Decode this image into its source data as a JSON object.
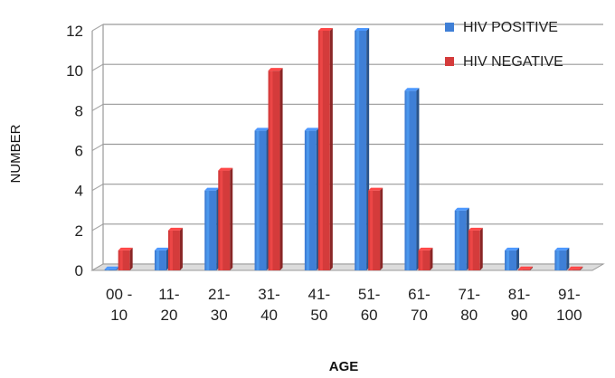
{
  "chart_data": {
    "type": "bar",
    "categories": [
      [
        "00 -",
        "10"
      ],
      [
        "11-",
        "20"
      ],
      [
        "21-",
        "30"
      ],
      [
        "31-",
        "40"
      ],
      [
        "41-",
        "50"
      ],
      [
        "51-",
        "60"
      ],
      [
        "61-",
        "70"
      ],
      [
        "71-",
        "80"
      ],
      [
        "81-",
        "90"
      ],
      [
        "91-",
        "100"
      ]
    ],
    "series": [
      {
        "name": "HIV POSITIVE",
        "color": "#3f7fd6",
        "values": [
          0,
          1,
          4,
          7,
          7,
          12,
          9,
          3,
          1,
          1
        ]
      },
      {
        "name": "HIV NEGATIVE",
        "color": "#d43b3b",
        "values": [
          1,
          2,
          5,
          10,
          12,
          4,
          1,
          2,
          0,
          0
        ]
      }
    ],
    "xlabel": "AGE",
    "ylabel": "NUMBER",
    "ylim": [
      0,
      12
    ],
    "yticks": [
      0,
      2,
      4,
      6,
      8,
      10,
      12
    ],
    "grid": true,
    "legend": "top-right"
  }
}
